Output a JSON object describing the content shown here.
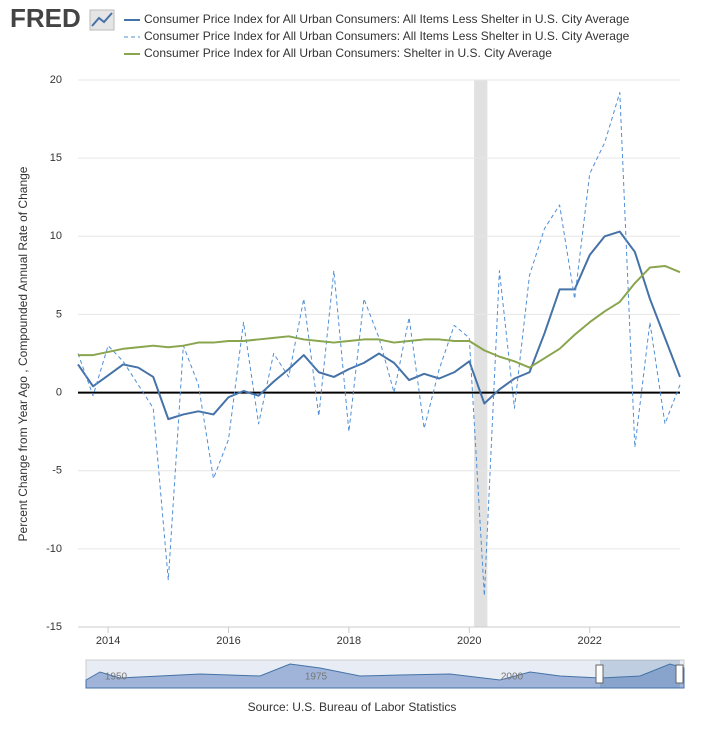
{
  "logo": "FRED",
  "source": "Source: U.S. Bureau of Labor Statistics",
  "navigator": {
    "labels": [
      "1950",
      "1975",
      "2000"
    ]
  },
  "chart_data": {
    "type": "line",
    "ylabel": "Percent Change from Year Ago , Compounded Annual Rate of Change",
    "xlim": [
      2013.5,
      2023.5
    ],
    "xticks": [
      2014,
      2016,
      2018,
      2020,
      2022
    ],
    "ylim": [
      -15,
      20
    ],
    "yticks": [
      -15,
      -10,
      -5,
      0,
      5,
      10,
      15,
      20
    ],
    "grid": true,
    "recession": [
      2020.08,
      2020.3
    ],
    "x": [
      2013.5,
      2013.75,
      2014,
      2014.25,
      2014.5,
      2014.75,
      2015,
      2015.25,
      2015.5,
      2015.75,
      2016,
      2016.25,
      2016.5,
      2016.75,
      2017,
      2017.25,
      2017.5,
      2017.75,
      2018,
      2018.25,
      2018.5,
      2018.75,
      2019,
      2019.25,
      2019.5,
      2019.75,
      2020,
      2020.25,
      2020.5,
      2020.75,
      2021,
      2021.25,
      2021.5,
      2021.75,
      2022,
      2022.25,
      2022.5,
      2022.75,
      2023,
      2023.25,
      2023.5
    ],
    "series": [
      {
        "name": "Consumer Price Index for All Urban Consumers: All Items Less Shelter in U.S. City Average",
        "color": "#4572a7",
        "dashed": false,
        "values": [
          1.8,
          0.4,
          1.1,
          1.8,
          1.6,
          1.0,
          -1.7,
          -1.4,
          -1.2,
          -1.4,
          -0.3,
          0.1,
          -0.2,
          0.7,
          1.5,
          2.4,
          1.3,
          1.0,
          1.5,
          1.9,
          2.5,
          1.9,
          0.8,
          1.2,
          0.9,
          1.3,
          2.0,
          -0.7,
          0.2,
          0.9,
          1.3,
          3.8,
          6.6,
          6.6,
          8.8,
          10.0,
          10.3,
          9.0,
          6.0,
          3.5,
          1.0
        ]
      },
      {
        "name": "Consumer Price Index for All Urban Consumers: All Items Less Shelter in U.S. City Average",
        "color": "#4f8fd6",
        "dashed": true,
        "values": [
          2.5,
          -0.2,
          3.0,
          2.0,
          0.5,
          -1.0,
          -12.0,
          3.0,
          0.5,
          -5.5,
          -3.0,
          4.5,
          -2.0,
          2.5,
          1.0,
          6.0,
          -1.5,
          7.8,
          -2.5,
          6.0,
          3.5,
          0.0,
          4.8,
          -2.3,
          1.5,
          4.3,
          3.5,
          -13.0,
          7.8,
          -1.0,
          7.5,
          10.5,
          12.0,
          6.0,
          14.0,
          16.0,
          19.2,
          -3.5,
          4.5,
          -2.0,
          0.5
        ]
      },
      {
        "name": "Consumer Price Index for All Urban Consumers: Shelter in U.S. City Average",
        "color": "#89a54e",
        "dashed": false,
        "values": [
          2.4,
          2.4,
          2.6,
          2.8,
          2.9,
          3.0,
          2.9,
          3.0,
          3.2,
          3.2,
          3.3,
          3.3,
          3.4,
          3.5,
          3.6,
          3.4,
          3.3,
          3.2,
          3.3,
          3.4,
          3.4,
          3.2,
          3.3,
          3.4,
          3.4,
          3.3,
          3.3,
          2.7,
          2.3,
          2.0,
          1.6,
          2.2,
          2.8,
          3.7,
          4.5,
          5.2,
          5.8,
          7.0,
          8.0,
          8.1,
          7.7
        ]
      }
    ]
  }
}
